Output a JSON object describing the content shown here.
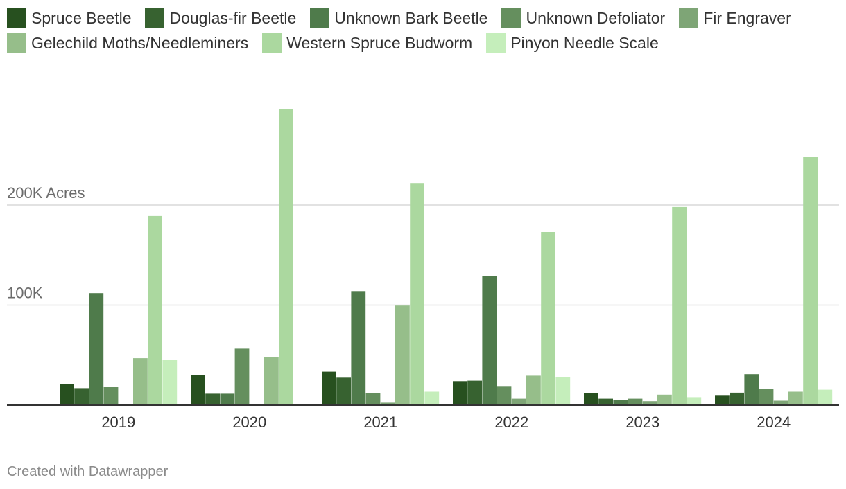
{
  "chart_data": {
    "type": "bar",
    "categories": [
      "2019",
      "2020",
      "2021",
      "2022",
      "2023",
      "2024"
    ],
    "series": [
      {
        "name": "Spruce Beetle",
        "color": "#27501f",
        "values": [
          21000,
          30000,
          33500,
          24000,
          12000,
          9500
        ]
      },
      {
        "name": "Douglas-fir Beetle",
        "color": "#376230",
        "values": [
          17000,
          11500,
          27500,
          24500,
          6500,
          12500
        ]
      },
      {
        "name": "Unknown Bark Beetle",
        "color": "#4f7b4b",
        "values": [
          112000,
          11500,
          114000,
          129000,
          5000,
          31000
        ]
      },
      {
        "name": "Unknown Defoliator",
        "color": "#658f5e",
        "values": [
          18000,
          56500,
          12000,
          18500,
          6500,
          16500
        ]
      },
      {
        "name": "Fir Engraver",
        "color": "#7ea576",
        "values": [
          1200,
          0,
          2500,
          6500,
          4000,
          4500
        ]
      },
      {
        "name": "Gelechild Moths/Needleminers",
        "color": "#96be8a",
        "values": [
          47000,
          48000,
          99500,
          29500,
          10500,
          13500
        ]
      },
      {
        "name": "Western Spruce Budworm",
        "color": "#abd89f",
        "values": [
          189000,
          296000,
          222000,
          173000,
          198000,
          248000
        ]
      },
      {
        "name": "Pinyon Needle Scale",
        "color": "#c5eebb",
        "values": [
          45000,
          0,
          13500,
          28000,
          8000,
          15500
        ]
      }
    ],
    "yticks": [
      {
        "value": 100000,
        "label": "100K"
      },
      {
        "value": 200000,
        "label": "200K Acres"
      }
    ],
    "ylim": [
      0,
      300000
    ],
    "xlabel": "",
    "ylabel": "",
    "grid": true,
    "legend": "top-left"
  },
  "footer": {
    "credit": "Created with Datawrapper"
  }
}
